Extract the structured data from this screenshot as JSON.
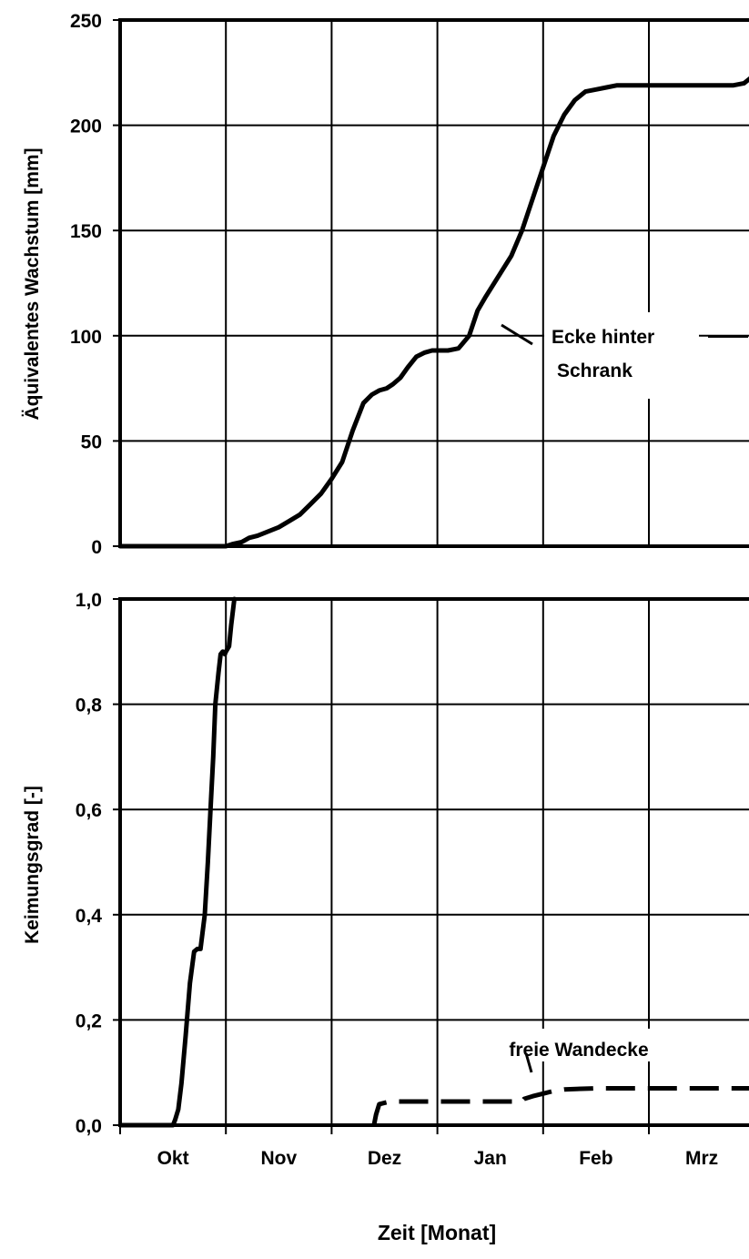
{
  "chart_data": [
    {
      "type": "line",
      "ylabel": "Äquivalentes Wachstum [mm]",
      "ylim": [
        0,
        250
      ],
      "yticks": [
        0,
        50,
        100,
        150,
        200,
        250
      ],
      "ytick_labels": [
        "0",
        "50",
        "100",
        "150",
        "200",
        "250"
      ],
      "xlim": [
        0,
        6
      ],
      "grid": true,
      "series": [
        {
          "name": "Ecke hinter Schrank",
          "style": "solid",
          "x": [
            0.0,
            0.5,
            1.0,
            1.06,
            1.15,
            1.22,
            1.3,
            1.4,
            1.5,
            1.6,
            1.7,
            1.8,
            1.9,
            2.0,
            2.1,
            2.2,
            2.3,
            2.38,
            2.45,
            2.52,
            2.58,
            2.65,
            2.72,
            2.8,
            2.88,
            2.95,
            3.02,
            3.1,
            3.2,
            3.3,
            3.38,
            3.45,
            3.5,
            3.55,
            3.6,
            3.7,
            3.8,
            3.9,
            4.0,
            4.1,
            4.2,
            4.3,
            4.4,
            4.5,
            4.6,
            4.7,
            4.8,
            4.9,
            5.0,
            5.2,
            5.5,
            5.8,
            5.9,
            6.0
          ],
          "y": [
            0,
            0,
            0,
            1,
            2,
            4,
            5,
            7,
            9,
            12,
            15,
            20,
            25,
            32,
            40,
            55,
            68,
            72,
            74,
            75,
            77,
            80,
            85,
            90,
            92,
            93,
            93,
            93,
            94,
            100,
            112,
            118,
            122,
            126,
            130,
            138,
            150,
            165,
            180,
            195,
            205,
            212,
            216,
            217,
            218,
            219,
            219,
            219,
            219,
            219,
            219,
            219,
            220,
            224
          ]
        }
      ]
    },
    {
      "type": "line",
      "ylabel": "Keimungsgrad [-]",
      "xlabel": "Zeit [Monat]",
      "categories": [
        "Okt",
        "Nov",
        "Dez",
        "Jan",
        "Feb",
        "Mrz"
      ],
      "ylim": [
        0,
        1.0
      ],
      "yticks": [
        0,
        0.2,
        0.4,
        0.6,
        0.8,
        1.0
      ],
      "ytick_labels": [
        "0,0",
        "0,2",
        "0,4",
        "0,6",
        "0,8",
        "1,0"
      ],
      "xlim": [
        0,
        6
      ],
      "grid": true,
      "series": [
        {
          "style": "solid",
          "x": [
            0.0,
            0.5,
            0.52,
            0.55,
            0.58,
            0.62,
            0.66,
            0.7,
            0.73,
            0.76,
            0.8,
            0.83,
            0.86,
            0.88,
            0.9,
            0.93,
            0.95,
            0.97,
            0.99,
            1.0,
            1.03,
            1.05,
            1.08
          ],
          "y": [
            0,
            0,
            0.01,
            0.03,
            0.08,
            0.17,
            0.27,
            0.33,
            0.335,
            0.335,
            0.4,
            0.5,
            0.62,
            0.7,
            0.8,
            0.86,
            0.895,
            0.9,
            0.895,
            0.9,
            0.91,
            0.95,
            1.0
          ]
        },
        {
          "name": "freie Wandecke",
          "style": "dashed",
          "x": [
            2.4,
            2.42,
            2.45,
            2.55,
            3.0,
            3.5,
            3.8,
            3.82,
            3.9,
            4.0,
            4.1,
            4.2,
            4.5,
            5.0,
            5.5,
            6.0
          ],
          "y": [
            0.0,
            0.02,
            0.04,
            0.045,
            0.045,
            0.045,
            0.045,
            0.05,
            0.055,
            0.06,
            0.065,
            0.068,
            0.07,
            0.07,
            0.07,
            0.07
          ]
        }
      ],
      "annotations": [
        {
          "text": "Ecke hinter",
          "panel": 0
        },
        {
          "text": "Schrank",
          "panel": 0
        },
        {
          "text": "freie Wandecke",
          "panel": 1
        }
      ]
    }
  ]
}
